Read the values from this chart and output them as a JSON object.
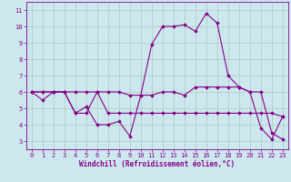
{
  "xlabel": "Windchill (Refroidissement éolien,°C)",
  "bg_color": "#cce8ee",
  "grid_color": "#aaccbb",
  "line_color": "#880088",
  "spine_color": "#880088",
  "xlim": [
    -0.5,
    23.5
  ],
  "ylim": [
    2.5,
    11.5
  ],
  "yticks": [
    3,
    4,
    5,
    6,
    7,
    8,
    9,
    10,
    11
  ],
  "xticks": [
    0,
    1,
    2,
    3,
    4,
    5,
    6,
    7,
    8,
    9,
    10,
    11,
    12,
    13,
    14,
    15,
    16,
    17,
    18,
    19,
    20,
    21,
    22,
    23
  ],
  "series": [
    [
      6.0,
      5.5,
      6.0,
      6.0,
      4.7,
      5.1,
      4.0,
      4.0,
      4.2,
      3.3,
      5.8,
      5.8,
      6.0,
      6.0,
      5.8,
      6.3,
      6.3,
      6.3,
      6.3,
      6.3,
      6.0,
      3.8,
      3.1,
      4.5
    ],
    [
      6.0,
      6.0,
      6.0,
      6.0,
      6.0,
      6.0,
      6.0,
      6.0,
      6.0,
      5.8,
      5.8,
      8.9,
      10.0,
      10.0,
      10.1,
      9.7,
      10.8,
      10.2,
      7.0,
      6.3,
      6.0,
      6.0,
      3.5,
      3.1
    ],
    [
      6.0,
      6.0,
      6.0,
      6.0,
      4.7,
      4.7,
      6.0,
      4.7,
      4.7,
      4.7,
      4.7,
      4.7,
      4.7,
      4.7,
      4.7,
      4.7,
      4.7,
      4.7,
      4.7,
      4.7,
      4.7,
      4.7,
      4.7,
      4.5
    ]
  ]
}
